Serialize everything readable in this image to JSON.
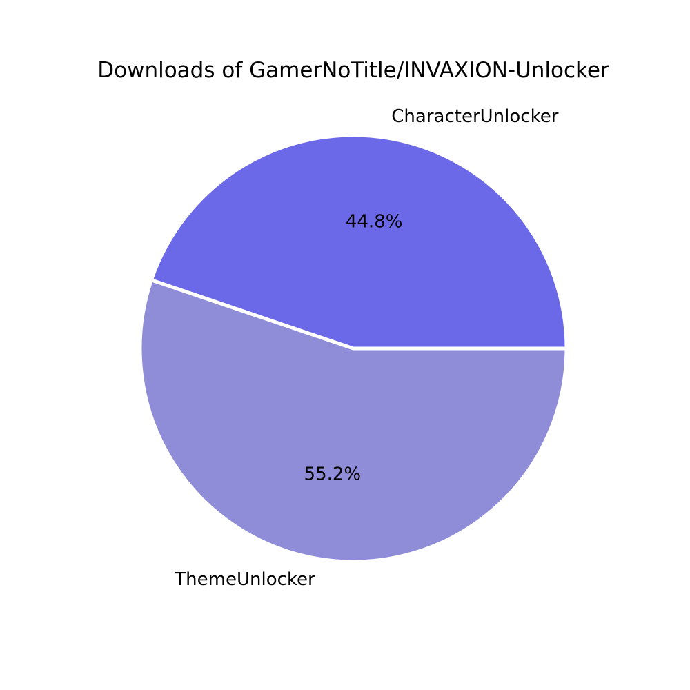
{
  "chart_data": {
    "type": "pie",
    "title": "Downloads of GamerNoTitle/INVAXION-Unlocker",
    "slices": [
      {
        "label": "CharacterUnlocker",
        "value": 44.8,
        "pct_label": "44.8%",
        "color": "#6b69e8"
      },
      {
        "label": "ThemeUnlocker",
        "value": 55.2,
        "pct_label": "55.2%",
        "color": "#8f8cd8"
      }
    ],
    "start_angle_deg": 0,
    "direction": "counterclockwise",
    "edge_color": "#ffffff"
  }
}
